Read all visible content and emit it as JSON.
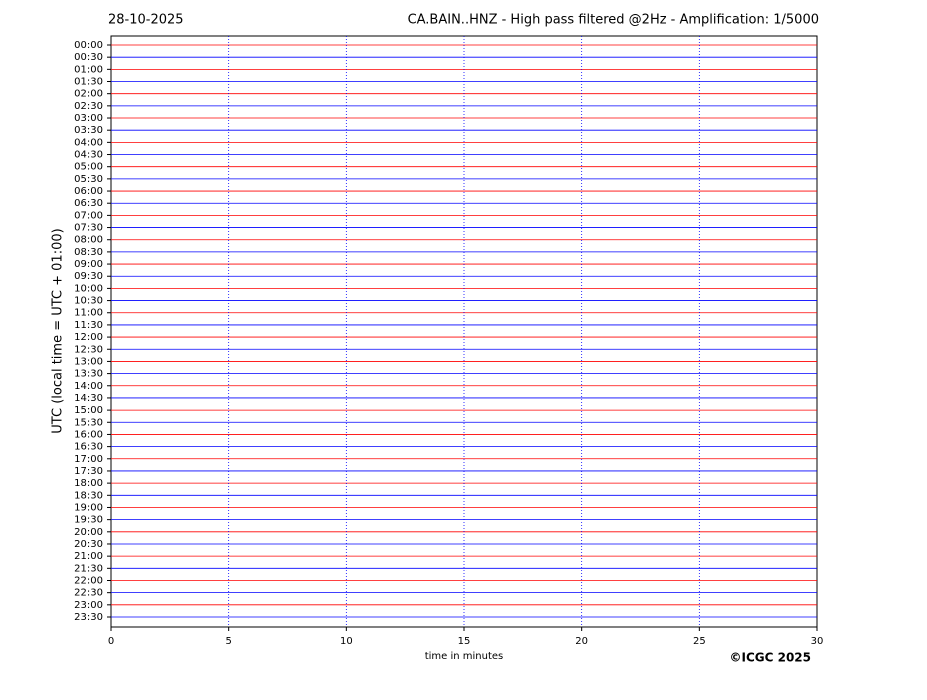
{
  "chart_data": {
    "type": "helicorder",
    "date": "28-10-2025",
    "title": "CA.BAIN..HNZ - High pass filtered @2Hz - Amplification: 1/5000",
    "ylabel": "UTC (local time = UTC + 01:00)",
    "xlabel": "time in minutes",
    "credit": "©ICGC 2025",
    "categories": [
      "00:00",
      "00:30",
      "01:00",
      "01:30",
      "02:00",
      "02:30",
      "03:00",
      "03:30",
      "04:00",
      "04:30",
      "05:00",
      "05:30",
      "06:00",
      "06:30",
      "07:00",
      "07:30",
      "08:00",
      "08:30",
      "09:00",
      "09:30",
      "10:00",
      "10:30",
      "11:00",
      "11:30",
      "12:00",
      "12:30",
      "13:00",
      "13:30",
      "14:00",
      "14:30",
      "15:00",
      "15:30",
      "16:00",
      "16:30",
      "17:00",
      "17:30",
      "18:00",
      "18:30",
      "19:00",
      "19:30",
      "20:00",
      "20:30",
      "21:00",
      "21:30",
      "22:00",
      "22:30",
      "23:00",
      "23:30"
    ],
    "trace_colors": [
      "#ff0000",
      "#0000ff"
    ],
    "xlim": [
      0,
      30
    ],
    "xticks": [
      0,
      5,
      10,
      15,
      20,
      25,
      30
    ],
    "grid": true
  }
}
